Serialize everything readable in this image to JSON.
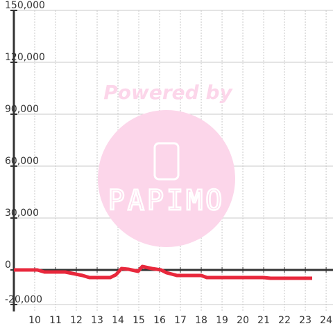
{
  "chart_data": {
    "type": "line",
    "x": [
      9,
      10.13,
      10.47,
      11.47,
      11.8,
      12.3,
      12.63,
      13.63,
      13.9,
      14.17,
      14.5,
      14.97,
      15.17,
      15.63,
      16.07,
      16.33,
      16.83,
      18,
      18.27,
      20,
      21,
      21.33,
      23.33
    ],
    "series": [
      {
        "color": "#e8283c",
        "values": [
          0,
          0,
          -1200,
          -1200,
          -2000,
          -3200,
          -4400,
          -4400,
          -2800,
          800,
          400,
          -800,
          2000,
          800,
          0,
          -1600,
          -3200,
          -3200,
          -4400,
          -4400,
          -4400,
          -4800,
          -4800
        ]
      }
    ],
    "xlim": [
      9,
      24.33
    ],
    "xticks": [
      10,
      11,
      12,
      13,
      14,
      15,
      16,
      17,
      18,
      19,
      20,
      21,
      22,
      23,
      24
    ],
    "ylim": [
      -24000,
      150000
    ],
    "yticks": [
      {
        "value": -20000,
        "label": "-20,000"
      },
      0,
      {
        "value": 30000,
        "label": "30,000"
      },
      {
        "value": 60000,
        "label": "60,000"
      },
      {
        "value": 90000,
        "label": "90,000"
      },
      {
        "value": 120000,
        "label": "120,000"
      },
      {
        "value": 150000,
        "label": "150,000"
      }
    ],
    "grid": true,
    "watermark": {
      "line1": "Powered by",
      "line2": "PAPIMO"
    }
  }
}
